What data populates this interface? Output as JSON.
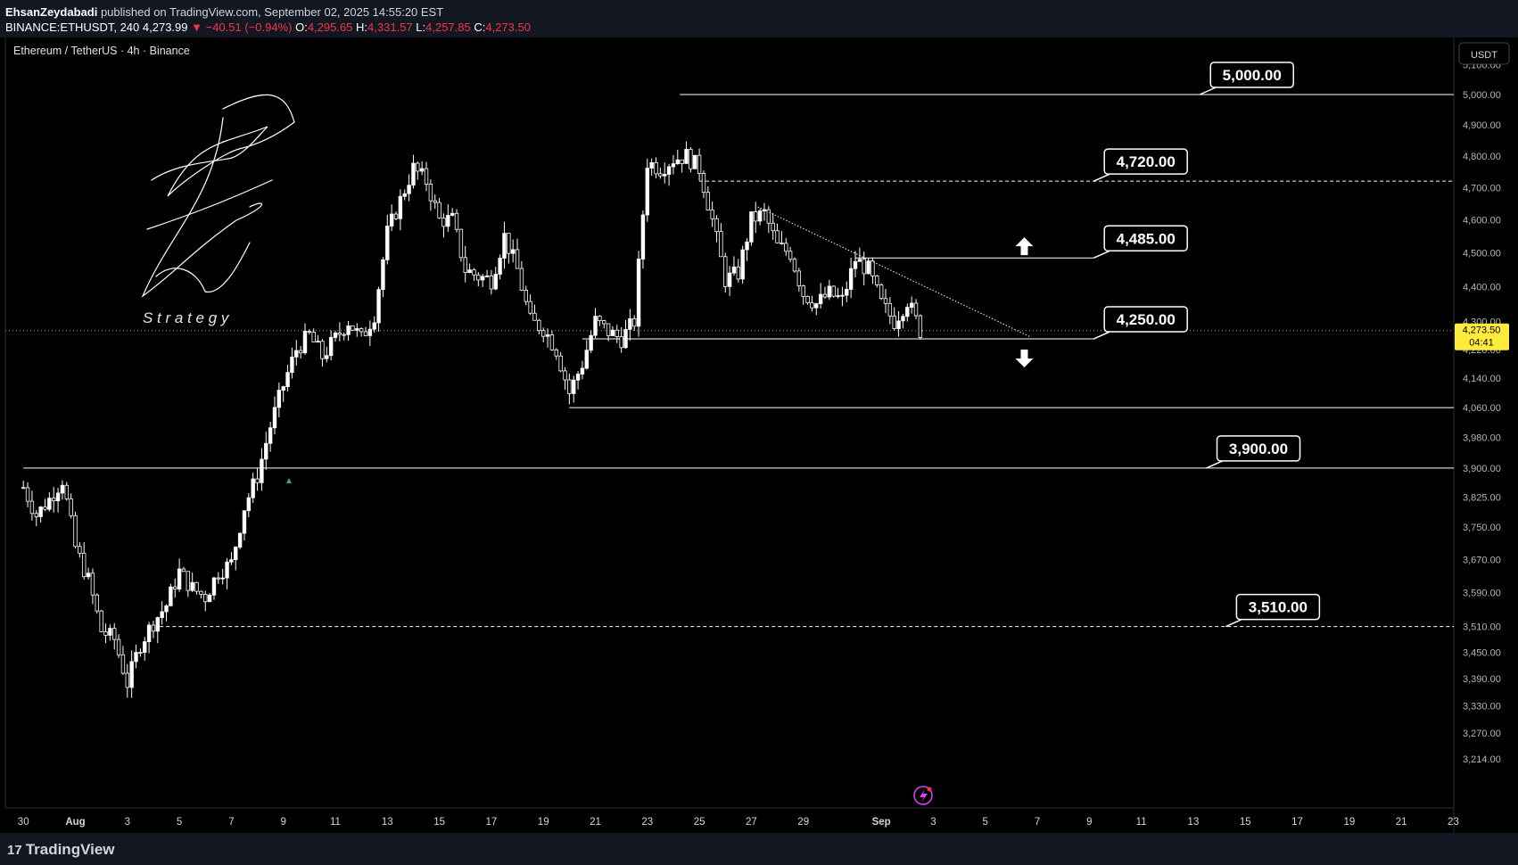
{
  "header": {
    "author": "EhsanZeydabadi",
    "published": "published on TradingView.com, September 02, 2025 14:55:20 EST",
    "symbol": "BINANCE:ETHUSDT, 240",
    "last": "4,273.99",
    "change": "▼ −40.51 (−0.94%)",
    "o_label": "O:",
    "o_val": "4,295.65",
    "h_label": "H:",
    "h_val": "4,331.57",
    "l_label": "L:",
    "l_val": "4,257.85",
    "c_label": "C:",
    "c_val": "4,273.50"
  },
  "chart_title": "Ethereum / TetherUS · 4h · Binance",
  "currency_button": "USDT",
  "logo": {
    "letter": "Z",
    "text": "S t r a t e g y"
  },
  "price_tag": {
    "price": "4,273.50",
    "countdown": "04:41"
  },
  "footer": {
    "brand": "TradingView",
    "mark": "17"
  },
  "colors": {
    "up": "#ffffff",
    "down": "#ffffff",
    "price_tag_bg": "#ffeb3b",
    "panel_bg": "#131722",
    "chart_bg": "#000000",
    "accent_red": "#f23645",
    "marker_teal": "#26a69a",
    "flash_icon": "#e040fb"
  },
  "chart_data": {
    "type": "candlestick",
    "title": "Ethereum / TetherUS · 4h · Binance",
    "y_scale": "log",
    "ylim": [
      3170,
      5150
    ],
    "x_range": [
      "2025-07-30",
      "2025-09-24"
    ],
    "y_ticks": [
      "5,100.00",
      "5,000.00",
      "4,900.00",
      "4,800.00",
      "4,700.00",
      "4,600.00",
      "4,500.00",
      "4,400.00",
      "4,300.00",
      "4,220.00",
      "4,140.00",
      "4,060.00",
      "3,980.00",
      "3,900.00",
      "3,825.00",
      "3,750.00",
      "3,670.00",
      "3,590.00",
      "3,510.00",
      "3,450.00",
      "3,390.00",
      "3,330.00",
      "3,270.00",
      "3,214.00"
    ],
    "x_ticks": [
      {
        "label": "30",
        "date": "2025-07-30"
      },
      {
        "label": "Aug",
        "date": "2025-08-01"
      },
      {
        "label": "3",
        "date": "2025-08-03"
      },
      {
        "label": "5",
        "date": "2025-08-05"
      },
      {
        "label": "7",
        "date": "2025-08-07"
      },
      {
        "label": "9",
        "date": "2025-08-09"
      },
      {
        "label": "11",
        "date": "2025-08-11"
      },
      {
        "label": "13",
        "date": "2025-08-13"
      },
      {
        "label": "15",
        "date": "2025-08-15"
      },
      {
        "label": "17",
        "date": "2025-08-17"
      },
      {
        "label": "19",
        "date": "2025-08-19"
      },
      {
        "label": "21",
        "date": "2025-08-21"
      },
      {
        "label": "23",
        "date": "2025-08-23"
      },
      {
        "label": "25",
        "date": "2025-08-25"
      },
      {
        "label": "27",
        "date": "2025-08-27"
      },
      {
        "label": "29",
        "date": "2025-08-29"
      },
      {
        "label": "Sep",
        "date": "2025-09-01"
      },
      {
        "label": "3",
        "date": "2025-09-03"
      },
      {
        "label": "5",
        "date": "2025-09-05"
      },
      {
        "label": "7",
        "date": "2025-09-07"
      },
      {
        "label": "9",
        "date": "2025-09-09"
      },
      {
        "label": "11",
        "date": "2025-09-11"
      },
      {
        "label": "13",
        "date": "2025-09-13"
      },
      {
        "label": "15",
        "date": "2025-09-15"
      },
      {
        "label": "17",
        "date": "2025-09-17"
      },
      {
        "label": "19",
        "date": "2025-09-19"
      },
      {
        "label": "21",
        "date": "2025-09-21"
      },
      {
        "label": "23",
        "date": "2025-09-23"
      }
    ],
    "price_path": [
      [
        "2025-07-30 00:00",
        3850
      ],
      [
        "2025-07-30 12:00",
        3780
      ],
      [
        "2025-07-31 00:00",
        3820
      ],
      [
        "2025-07-31 12:00",
        3870
      ],
      [
        "2025-08-01 00:00",
        3700
      ],
      [
        "2025-08-01 12:00",
        3620
      ],
      [
        "2025-08-02 00:00",
        3500
      ],
      [
        "2025-08-02 12:00",
        3480
      ],
      [
        "2025-08-03 00:00",
        3380
      ],
      [
        "2025-08-03 12:00",
        3470
      ],
      [
        "2025-08-04 00:00",
        3520
      ],
      [
        "2025-08-04 12:00",
        3560
      ],
      [
        "2025-08-05 00:00",
        3640
      ],
      [
        "2025-08-05 12:00",
        3600
      ],
      [
        "2025-08-06 00:00",
        3580
      ],
      [
        "2025-08-06 12:00",
        3640
      ],
      [
        "2025-08-07 00:00",
        3660
      ],
      [
        "2025-08-07 12:00",
        3800
      ],
      [
        "2025-08-08 00:00",
        3880
      ],
      [
        "2025-08-08 12:00",
        4010
      ],
      [
        "2025-08-09 00:00",
        4120
      ],
      [
        "2025-08-09 12:00",
        4220
      ],
      [
        "2025-08-10 00:00",
        4260
      ],
      [
        "2025-08-10 12:00",
        4200
      ],
      [
        "2025-08-11 00:00",
        4250
      ],
      [
        "2025-08-11 12:00",
        4300
      ],
      [
        "2025-08-12 00:00",
        4250
      ],
      [
        "2025-08-12 12:00",
        4320
      ],
      [
        "2025-08-13 00:00",
        4560
      ],
      [
        "2025-08-13 12:00",
        4660
      ],
      [
        "2025-08-14 00:00",
        4760
      ],
      [
        "2025-08-14 12:00",
        4720
      ],
      [
        "2025-08-15 00:00",
        4600
      ],
      [
        "2025-08-15 12:00",
        4600
      ],
      [
        "2025-08-16 00:00",
        4450
      ],
      [
        "2025-08-16 12:00",
        4430
      ],
      [
        "2025-08-17 00:00",
        4420
      ],
      [
        "2025-08-17 12:00",
        4550
      ],
      [
        "2025-08-18 00:00",
        4450
      ],
      [
        "2025-08-18 12:00",
        4300
      ],
      [
        "2025-08-19 00:00",
        4280
      ],
      [
        "2025-08-19 12:00",
        4220
      ],
      [
        "2025-08-20 00:00",
        4100
      ],
      [
        "2025-08-20 12:00",
        4180
      ],
      [
        "2025-08-21 00:00",
        4300
      ],
      [
        "2025-08-21 12:00",
        4270
      ],
      [
        "2025-08-22 00:00",
        4250
      ],
      [
        "2025-08-22 12:00",
        4300
      ],
      [
        "2025-08-23 00:00",
        4780
      ],
      [
        "2025-08-23 12:00",
        4760
      ],
      [
        "2025-08-24 00:00",
        4790
      ],
      [
        "2025-08-24 12:00",
        4800
      ],
      [
        "2025-08-25 00:00",
        4760
      ],
      [
        "2025-08-25 12:00",
        4600
      ],
      [
        "2025-08-26 00:00",
        4420
      ],
      [
        "2025-08-26 12:00",
        4440
      ],
      [
        "2025-08-27 00:00",
        4600
      ],
      [
        "2025-08-27 12:00",
        4620
      ],
      [
        "2025-08-28 00:00",
        4520
      ],
      [
        "2025-08-28 12:00",
        4500
      ],
      [
        "2025-08-29 00:00",
        4380
      ],
      [
        "2025-08-29 12:00",
        4350
      ],
      [
        "2025-08-30 00:00",
        4380
      ],
      [
        "2025-08-30 12:00",
        4360
      ],
      [
        "2025-08-31 00:00",
        4480
      ],
      [
        "2025-08-31 12:00",
        4450
      ],
      [
        "2025-09-01 00:00",
        4350
      ],
      [
        "2025-09-01 12:00",
        4300
      ],
      [
        "2025-09-02 00:00",
        4360
      ],
      [
        "2025-09-02 12:00",
        4273.5
      ]
    ],
    "horizontal_levels": [
      {
        "price": 5000,
        "label": "5,000.00",
        "style": "solid",
        "from": "2025-08-24 06:00"
      },
      {
        "price": 4720,
        "label": "4,720.00",
        "style": "dashed",
        "from": "2025-08-25 00:00"
      },
      {
        "price": 4485,
        "label": "4,485.00",
        "style": "solid",
        "from": "2025-08-31 00:00",
        "to": "2025-09-09 04:00"
      },
      {
        "price": 4250,
        "label": "4,250.00",
        "style": "solid",
        "from": "2025-08-20 12:00",
        "to": "2025-09-09 04:00"
      },
      {
        "price": 4060,
        "style": "solid",
        "from": "2025-08-20 00:00"
      },
      {
        "price": 3900,
        "label": "3,900.00",
        "style": "solid",
        "from": "2025-07-30 00:00"
      },
      {
        "price": 3510,
        "label": "3,510.00",
        "style": "dashed",
        "from": "2025-08-04 06:00"
      },
      {
        "price": 4273.5,
        "style": "dotted-current",
        "from": "2025-07-30 00:00"
      }
    ],
    "trendline": {
      "from": [
        "2025-08-27 06:00",
        4640
      ],
      "to": [
        "2025-09-06 18:00",
        4255
      ],
      "style": "dotted"
    },
    "arrows": [
      {
        "direction": "up",
        "date": "2025-09-06 12:00",
        "price": 4520
      },
      {
        "direction": "down",
        "date": "2025-09-06 12:00",
        "price": 4195
      }
    ]
  }
}
